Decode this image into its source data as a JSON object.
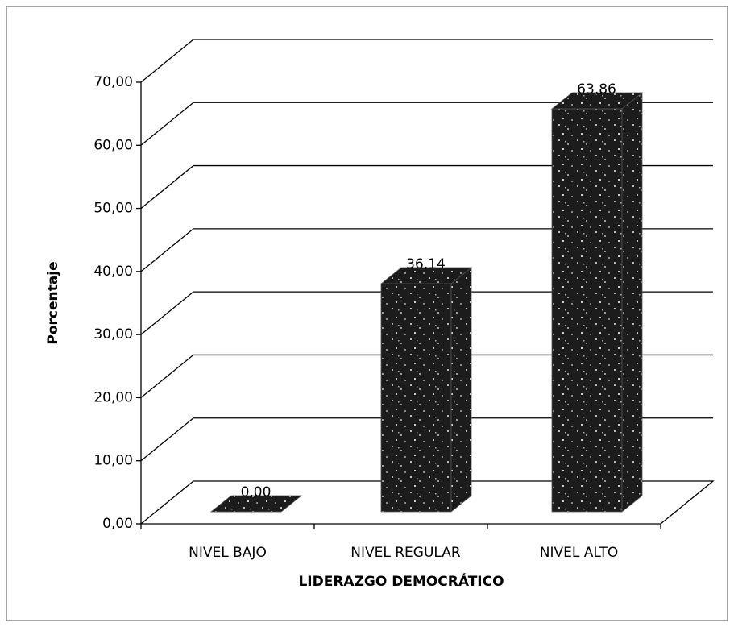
{
  "chart_data": {
    "type": "bar3d",
    "categories": [
      "NIVEL BAJO",
      "NIVEL REGULAR",
      "NIVEL ALTO"
    ],
    "values": [
      0,
      36.14,
      63.86
    ],
    "value_labels": [
      "0,00",
      "36,14",
      "63,86"
    ],
    "color": "#1c1c1c",
    "x_label": "LIDERAZGO DEMOCRÁTICO",
    "y_label": "Porcentaje",
    "ylim": [
      0,
      70
    ],
    "yticks": [
      {
        "value": 0,
        "label": "0,00"
      },
      {
        "value": 10,
        "label": "10,00"
      },
      {
        "value": 20,
        "label": "20,00"
      },
      {
        "value": 30,
        "label": "30,00"
      },
      {
        "value": 40,
        "label": "40,00"
      },
      {
        "value": 50,
        "label": "50,00"
      },
      {
        "value": 60,
        "label": "60,00"
      },
      {
        "value": 70,
        "label": "70,00"
      }
    ],
    "grid": true
  }
}
